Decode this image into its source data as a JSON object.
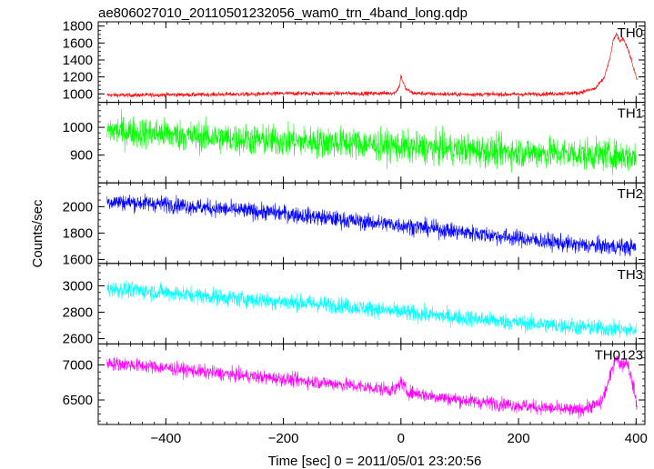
{
  "chart_data": {
    "type": "line",
    "title": "ae806027010_20110501232056_wam0_trn_4band_long.qdp",
    "xlabel": "Time [sec] 0 = 2011/05/01 23:20:56",
    "ylabel": "Counts/sec",
    "xlim": [
      -515,
      415
    ],
    "x_ticks": [
      -400,
      -200,
      0,
      200,
      400
    ],
    "x_tick_labels": [
      "−400",
      "−200",
      "0",
      "200",
      "400"
    ],
    "x_minor_step": 20,
    "grid": false,
    "panels": [
      {
        "name": "TH0",
        "color": "#ff0000",
        "ylim": [
          900,
          1850
        ],
        "y_ticks": [
          1000,
          1200,
          1400,
          1600,
          1800
        ],
        "y_tick_labels": [
          "1000",
          "1200",
          "1400",
          "1600",
          "1800"
        ],
        "y_minor_step": 50,
        "noise": 18,
        "x": [
          -500,
          -450,
          -400,
          -350,
          -300,
          -250,
          -200,
          -150,
          -100,
          -50,
          -10,
          -2,
          0,
          3,
          8,
          20,
          50,
          100,
          150,
          200,
          250,
          300,
          330,
          345,
          355,
          362,
          367,
          372,
          378,
          385,
          392,
          398,
          402
        ],
        "y": [
          985,
          985,
          990,
          990,
          995,
          995,
          1005,
          1005,
          1005,
          1005,
          1010,
          1100,
          1220,
          1150,
          1060,
          1010,
          1000,
          995,
          995,
          995,
          1000,
          1010,
          1060,
          1180,
          1400,
          1650,
          1700,
          1620,
          1660,
          1550,
          1400,
          1250,
          1150
        ]
      },
      {
        "name": "TH1",
        "color": "#00ff00",
        "ylim": [
          800,
          1090
        ],
        "y_ticks": [
          900,
          1000
        ],
        "y_tick_labels": [
          "900",
          "1000"
        ],
        "y_minor_step": 20,
        "noise": 40,
        "x": [
          -500,
          -400,
          -300,
          -200,
          -100,
          0,
          100,
          200,
          300,
          400
        ],
        "y": [
          990,
          975,
          960,
          950,
          945,
          930,
          920,
          910,
          905,
          895
        ]
      },
      {
        "name": "TH2",
        "color": "#0000ff",
        "ylim": [
          1570,
          2180
        ],
        "y_ticks": [
          1600,
          1800,
          2000
        ],
        "y_tick_labels": [
          "1600",
          "1800",
          "2000"
        ],
        "y_minor_step": 50,
        "noise": 45,
        "x": [
          -500,
          -400,
          -300,
          -200,
          -100,
          0,
          100,
          200,
          300,
          400
        ],
        "y": [
          2040,
          2020,
          1980,
          1950,
          1900,
          1860,
          1810,
          1760,
          1710,
          1690
        ]
      },
      {
        "name": "TH3",
        "color": "#00ffff",
        "ylim": [
          2560,
          3170
        ],
        "y_ticks": [
          2600,
          2800,
          3000
        ],
        "y_tick_labels": [
          "2600",
          "2800",
          "3000"
        ],
        "y_minor_step": 50,
        "noise": 45,
        "x": [
          -500,
          -400,
          -300,
          -200,
          -100,
          0,
          100,
          200,
          300,
          400
        ],
        "y": [
          2980,
          2950,
          2910,
          2880,
          2850,
          2800,
          2760,
          2720,
          2690,
          2660
        ]
      },
      {
        "name": "TH0123",
        "color": "#ff00ff",
        "ylim": [
          6150,
          7300
        ],
        "y_ticks": [
          6500,
          7000
        ],
        "y_tick_labels": [
          "6500",
          "7000"
        ],
        "y_minor_step": 100,
        "noise": 70,
        "x": [
          -500,
          -400,
          -300,
          -200,
          -100,
          -10,
          0,
          10,
          50,
          100,
          200,
          300,
          340,
          355,
          365,
          375,
          385,
          395,
          402
        ],
        "y": [
          7030,
          6960,
          6870,
          6800,
          6720,
          6640,
          6760,
          6620,
          6560,
          6500,
          6420,
          6350,
          6450,
          6800,
          7120,
          7000,
          7050,
          6700,
          6400
        ]
      }
    ]
  }
}
